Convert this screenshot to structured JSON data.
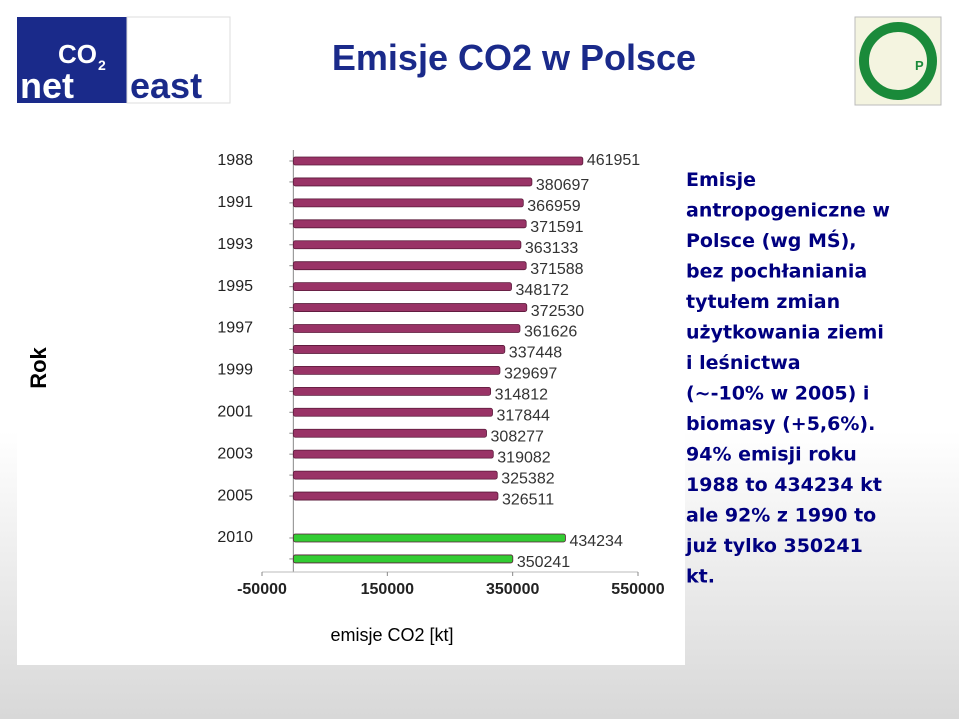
{
  "header": {
    "title": "Emisje CO2 w Polsce",
    "logo_left": {
      "top": "CO",
      "sub": "2",
      "left": "net",
      "right": "east"
    },
    "logo_right": "P B"
  },
  "chart_data": {
    "type": "hbar",
    "y_label": "Rok",
    "x_label": "emisje CO2 [kt]",
    "categories": [
      "1988",
      null,
      "1991",
      null,
      "1993",
      null,
      "1995",
      null,
      "1997",
      null,
      "1999",
      null,
      "2001",
      null,
      "2003",
      null,
      "2005",
      "2010",
      null
    ],
    "values": [
      461951,
      380697,
      366959,
      371591,
      363133,
      371588,
      348172,
      372530,
      361626,
      337448,
      329697,
      314812,
      317844,
      308277,
      319082,
      325382,
      326511,
      434234,
      350241
    ],
    "colors": [
      "#993366",
      "#993366",
      "#993366",
      "#993366",
      "#993366",
      "#993366",
      "#993366",
      "#993366",
      "#993366",
      "#993366",
      "#993366",
      "#993366",
      "#993366",
      "#993366",
      "#993366",
      "#993366",
      "#993366",
      "#33cc33",
      "#33cc33"
    ],
    "xlim": [
      -50000,
      550000
    ],
    "xticks": [
      -50000,
      150000,
      350000,
      550000
    ]
  },
  "note": [
    "Emisje",
    "antropogeniczne w",
    "Polsce (wg MŚ),",
    "bez pochłaniania",
    "tytułem zmian",
    "użytkowania ziemi",
    "i leśnictwa",
    "(~-10% w 2005) i",
    "biomasy (+5,6%).",
    "94% emisji roku",
    "1988 to 434234 kt",
    "ale 92% z 1990 to",
    "już tylko 350241",
    "kt."
  ]
}
